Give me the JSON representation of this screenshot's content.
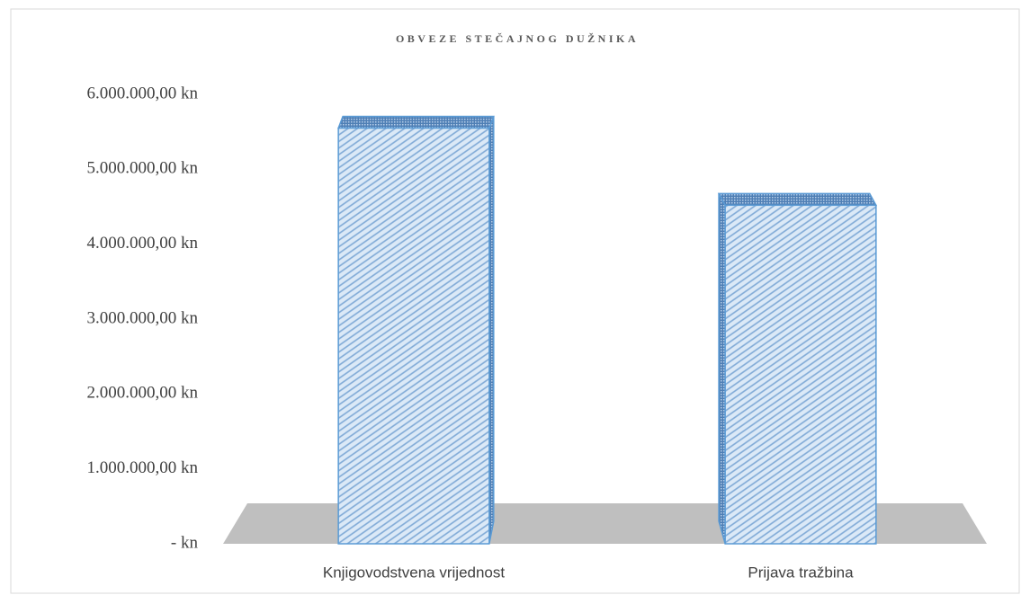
{
  "chart_data": {
    "type": "bar3d",
    "title": "OBVEZE STEČAJNOG DUŽNIKA",
    "categories": [
      "Knjigovodstvena vrijednost",
      "Prijava tražbina"
    ],
    "values": [
      5550000,
      4520000
    ],
    "color": "#9dc3e6",
    "ylim": [
      0,
      6000000
    ],
    "yticks": [
      {
        "value": 0,
        "label": "-   kn"
      },
      {
        "value": 1000000,
        "label": "1.000.000,00 kn"
      },
      {
        "value": 2000000,
        "label": "2.000.000,00 kn"
      },
      {
        "value": 3000000,
        "label": "3.000.000,00 kn"
      },
      {
        "value": 4000000,
        "label": "4.000.000,00 kn"
      },
      {
        "value": 5000000,
        "label": "5.000.000,00 kn"
      },
      {
        "value": 6000000,
        "label": "6.000.000,00 kn"
      }
    ],
    "grid": false
  }
}
